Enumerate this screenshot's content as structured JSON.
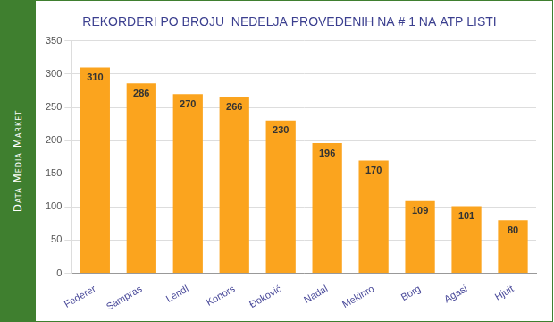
{
  "chart_data": {
    "type": "bar",
    "title": "REKORDERI PO BROJU  NEDELJA PROVEDENIH NA # 1 NA ATP LISTI",
    "annotation": "Data Media Market",
    "categories": [
      "Federer",
      "Sampras",
      "Lendl",
      "Konors",
      "Đoković",
      "Nadal",
      "Mekinro",
      "Borg",
      "Agasi",
      "Hjuit"
    ],
    "values": [
      310,
      286,
      270,
      266,
      230,
      196,
      170,
      109,
      101,
      80
    ],
    "color": "#fba41e",
    "ylim": [
      0,
      350
    ],
    "yticks": [
      0,
      50,
      100,
      150,
      200,
      250,
      300,
      350
    ],
    "grid": true,
    "data_labels": true
  }
}
